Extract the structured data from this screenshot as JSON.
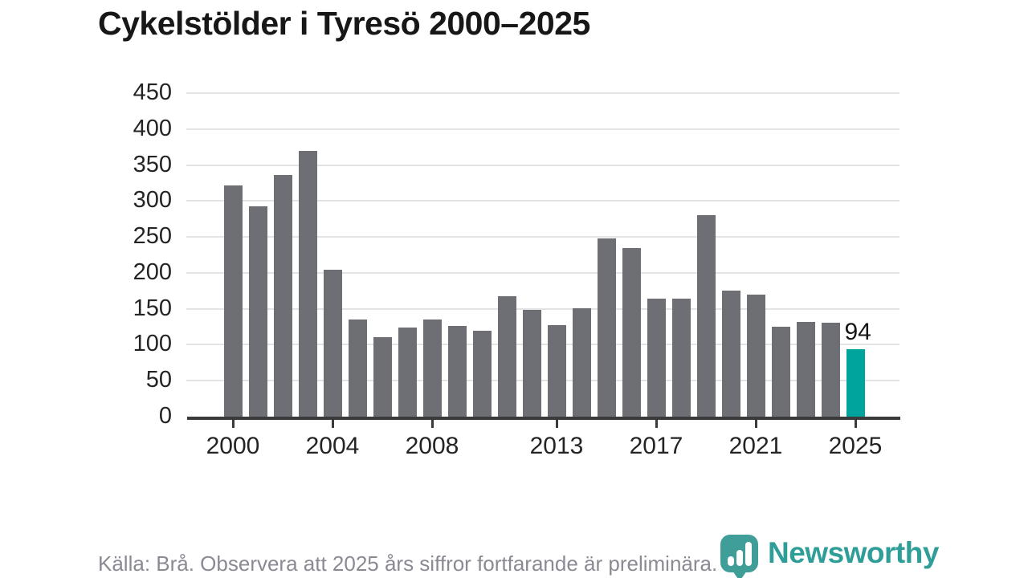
{
  "title": "Cykelstölder i Tyresö 2000–2025",
  "chart_data": {
    "type": "bar",
    "title": "Cykelstölder i Tyresö 2000–2025",
    "categories": [
      2000,
      2001,
      2002,
      2003,
      2004,
      2005,
      2006,
      2007,
      2008,
      2009,
      2010,
      2011,
      2012,
      2013,
      2014,
      2015,
      2016,
      2017,
      2018,
      2019,
      2020,
      2021,
      2022,
      2023,
      2024,
      2025
    ],
    "values": [
      322,
      293,
      336,
      370,
      204,
      135,
      111,
      124,
      135,
      126,
      119,
      168,
      148,
      127,
      151,
      248,
      235,
      164,
      164,
      280,
      175,
      170,
      125,
      132,
      131,
      94
    ],
    "xlabel": "",
    "ylabel": "",
    "ylim": [
      0,
      450
    ],
    "ytick_step": 50,
    "ytick_labels": [
      "0",
      "50",
      "100",
      "150",
      "200",
      "250",
      "300",
      "350",
      "400",
      "450"
    ],
    "xtick_years": [
      2000,
      2004,
      2008,
      2013,
      2017,
      2021,
      2025
    ],
    "grid": true,
    "legend": "none",
    "bar_color": "#6e6e75",
    "highlight": {
      "category": 2025,
      "value": 94,
      "label": "94",
      "color": "#00a49c"
    }
  },
  "footer": {
    "source_note": "Källa: Brå. Observera att 2025 års siffror fortfarande är preliminära."
  },
  "logo": {
    "icon": "newsworthy-chart-bubble-icon",
    "wordmark": "Newsworthy",
    "wordmark_color": "#2f9e98",
    "icon_color": "#3f9f98"
  }
}
